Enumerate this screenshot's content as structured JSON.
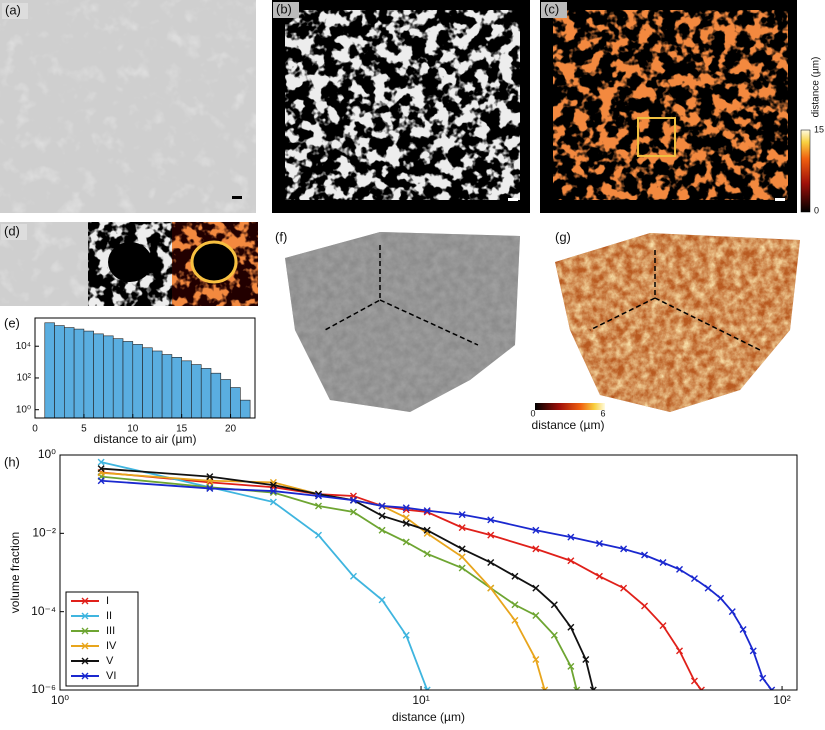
{
  "panels": {
    "a": "(a)",
    "b": "(b)",
    "c": "(c)",
    "d": "(d)",
    "e": "(e)",
    "f": "(f)",
    "g": "(g)",
    "h": "(h)"
  },
  "colorbar_c": {
    "label": "distance (µm)",
    "min": 0,
    "max": 15
  },
  "colorbar_g": {
    "label": "distance (µm)",
    "min": 0,
    "max": 6
  },
  "chart_data": [
    {
      "type": "histogram",
      "xlabel": "distance to air (µm)",
      "color": "#5aaee0",
      "yscale": "log",
      "bins": [
        1,
        2,
        3,
        4,
        5,
        6,
        7,
        8,
        9,
        10,
        11,
        12,
        13,
        14,
        15,
        16,
        17,
        18,
        19,
        20,
        21,
        22
      ],
      "values": [
        300000,
        200000,
        150000,
        120000,
        90000,
        60000,
        45000,
        30000,
        20000,
        13000,
        8000,
        5000,
        3000,
        2000,
        1200,
        700,
        400,
        200,
        80,
        25,
        4
      ],
      "xlim": [
        0,
        22.5
      ],
      "ylim": [
        0.3,
        600000
      ],
      "xticks": [
        0,
        5,
        10,
        15,
        20
      ],
      "yticks": [
        {
          "value": 1,
          "label": "10⁰"
        },
        {
          "value": 100,
          "label": "10²"
        },
        {
          "value": 10000,
          "label": "10⁴"
        }
      ]
    },
    {
      "type": "line",
      "xlabel": "distance (µm)",
      "ylabel": "volume fraction",
      "xscale": "log",
      "yscale": "log",
      "legend": "lower-left",
      "xlim": [
        1,
        110
      ],
      "ylim": [
        1e-06,
        1
      ],
      "xticks": [
        {
          "value": 1,
          "label": "10⁰"
        },
        {
          "value": 10,
          "label": "10¹"
        },
        {
          "value": 100,
          "label": "10²"
        }
      ],
      "yticks": [
        {
          "value": 1,
          "label": "10⁰"
        },
        {
          "value": 0.01,
          "label": "10⁻²"
        },
        {
          "value": 0.0001,
          "label": "10⁻⁴"
        },
        {
          "value": 1e-06,
          "label": "10⁻⁶"
        }
      ],
      "series": [
        {
          "name": "I",
          "color": "#e0201a",
          "x": [
            1.3,
            2.6,
            3.9,
            5.2,
            6.5,
            7.8,
            9.1,
            10.4,
            13,
            15.6,
            20.8,
            26,
            31.2,
            36.4,
            41.6,
            46.8,
            52,
            57.2,
            59.8
          ],
          "values": [
            0.36,
            0.2,
            0.15,
            0.1,
            0.09,
            0.05,
            0.04,
            0.035,
            0.014,
            0.009,
            0.004,
            0.002,
            0.0008,
            0.0004,
            0.00014,
            4.4e-05,
            1e-05,
            1.7e-06,
            1e-06
          ]
        },
        {
          "name": "II",
          "color": "#3fb5df",
          "x": [
            1.3,
            2.6,
            3.9,
            5.2,
            6.5,
            7.8,
            9.1,
            10.4
          ],
          "values": [
            0.66,
            0.15,
            0.063,
            0.009,
            0.0008,
            0.0002,
            2.5e-05,
            1e-06
          ]
        },
        {
          "name": "III",
          "color": "#6ea532",
          "x": [
            1.3,
            2.6,
            3.9,
            5.2,
            6.5,
            7.8,
            9.1,
            10.4,
            13,
            15.6,
            18.2,
            20.8,
            23.4,
            26,
            27
          ],
          "values": [
            0.28,
            0.15,
            0.11,
            0.05,
            0.035,
            0.012,
            0.006,
            0.003,
            0.0013,
            0.0004,
            0.00015,
            8e-05,
            2.5e-05,
            4e-06,
            1e-06
          ]
        },
        {
          "name": "IV",
          "color": "#e8a51c",
          "x": [
            1.3,
            2.6,
            3.9,
            5.2,
            6.5,
            7.8,
            9.1,
            10.4,
            13,
            15.6,
            18.2,
            20.8,
            22
          ],
          "values": [
            0.35,
            0.22,
            0.2,
            0.1,
            0.07,
            0.05,
            0.025,
            0.01,
            0.0025,
            0.0004,
            6e-05,
            6e-06,
            1e-06
          ]
        },
        {
          "name": "V",
          "color": "#111111",
          "x": [
            1.3,
            2.6,
            3.9,
            5.2,
            6.5,
            7.8,
            9.1,
            10.4,
            13,
            15.6,
            18.2,
            20.8,
            23.4,
            26,
            28.6,
            30
          ],
          "values": [
            0.45,
            0.28,
            0.17,
            0.1,
            0.07,
            0.028,
            0.018,
            0.012,
            0.004,
            0.0018,
            0.0008,
            0.0004,
            0.00015,
            4e-05,
            6e-06,
            1e-06
          ]
        },
        {
          "name": "VI",
          "color": "#1a28cf",
          "x": [
            1.3,
            2.6,
            3.9,
            5.2,
            6.5,
            7.8,
            9.1,
            10.4,
            13,
            15.6,
            20.8,
            26,
            31.2,
            36.4,
            41.6,
            46.8,
            52,
            57.2,
            62.4,
            67.6,
            72.8,
            78,
            83.2,
            88.4,
            93.6
          ],
          "values": [
            0.22,
            0.14,
            0.12,
            0.09,
            0.07,
            0.05,
            0.045,
            0.038,
            0.03,
            0.022,
            0.012,
            0.008,
            0.0055,
            0.004,
            0.0028,
            0.0018,
            0.0012,
            0.0007,
            0.0004,
            0.00022,
            0.0001,
            3.5e-05,
            1e-05,
            2e-06,
            1e-06
          ]
        }
      ]
    }
  ]
}
